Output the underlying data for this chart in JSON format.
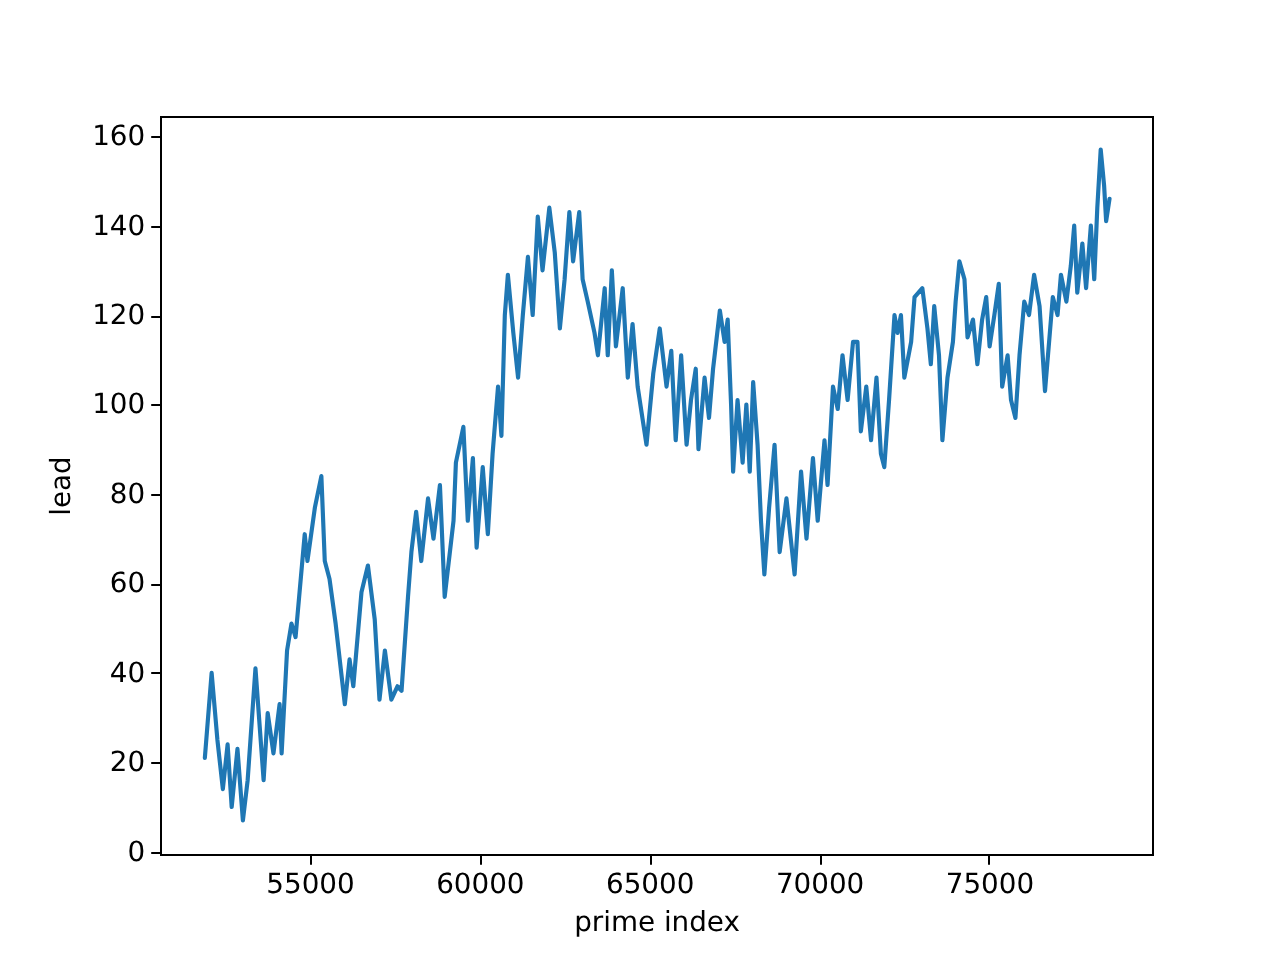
{
  "chart_data": {
    "type": "line",
    "xlabel": "prime index",
    "ylabel": "lead",
    "color": "#1f77b4",
    "line_style": "solid",
    "xlim": [
      50600,
      79800
    ],
    "ylim": [
      -0.5,
      164.5
    ],
    "xticks": [
      55000,
      60000,
      65000,
      70000,
      75000
    ],
    "yticks": [
      0,
      20,
      40,
      60,
      80,
      100,
      120,
      140,
      160
    ],
    "grid": false,
    "legend": false,
    "x": [
      51920,
      52120,
      52290,
      52450,
      52590,
      52710,
      52880,
      53040,
      53180,
      53410,
      53650,
      53770,
      53940,
      54120,
      54180,
      54340,
      54470,
      54590,
      54860,
      54940,
      55160,
      55350,
      55450,
      55590,
      55770,
      56040,
      56180,
      56290,
      56530,
      56720,
      56920,
      57060,
      57220,
      57410,
      57590,
      57710,
      57900,
      58000,
      58140,
      58290,
      58490,
      58650,
      58840,
      58980,
      59240,
      59310,
      59530,
      59660,
      59810,
      59920,
      60100,
      60250,
      60390,
      60550,
      60650,
      60750,
      60840,
      61000,
      61140,
      61280,
      61430,
      61570,
      61720,
      61860,
      62060,
      62220,
      62370,
      62510,
      62650,
      62760,
      62940,
      63040,
      63190,
      63390,
      63490,
      63690,
      63780,
      63900,
      64020,
      64220,
      64370,
      64510,
      64660,
      64920,
      65120,
      65310,
      65510,
      65650,
      65780,
      65940,
      66100,
      66230,
      66370,
      66450,
      66630,
      66760,
      66880,
      67080,
      67220,
      67310,
      67410,
      67470,
      67600,
      67750,
      67860,
      67960,
      68060,
      68190,
      68290,
      68390,
      68530,
      68690,
      68840,
      69040,
      69280,
      69470,
      69630,
      69820,
      69960,
      70160,
      70250,
      70410,
      70550,
      70690,
      70840,
      71000,
      71130,
      71230,
      71390,
      71530,
      71690,
      71820,
      71920,
      72060,
      72220,
      72310,
      72410,
      72510,
      72710,
      72810,
      73040,
      73190,
      73290,
      73390,
      73530,
      73630,
      73780,
      73940,
      74020,
      74130,
      74280,
      74370,
      74530,
      74660,
      74800,
      74920,
      75020,
      75160,
      75290,
      75390,
      75550,
      75650,
      75780,
      75900,
      76040,
      76180,
      76330,
      76490,
      76650,
      76760,
      76880,
      77020,
      77120,
      77280,
      77410,
      77510,
      77600,
      77750,
      77860,
      78000,
      78100,
      78190,
      78290,
      78390,
      78450,
      78550
    ],
    "values": [
      21,
      40,
      25,
      14,
      24,
      10,
      23,
      7,
      16,
      41,
      16,
      31,
      22,
      33,
      22,
      45,
      51,
      48,
      71,
      65,
      77,
      84,
      65,
      61,
      51,
      33,
      43,
      37,
      58,
      64,
      52,
      34,
      45,
      34,
      37,
      36,
      57,
      67,
      76,
      65,
      79,
      70,
      82,
      57,
      74,
      87,
      95,
      74,
      88,
      68,
      86,
      71,
      89,
      104,
      93,
      120,
      129,
      116,
      106,
      120,
      133,
      120,
      142,
      130,
      144,
      134,
      117,
      128,
      143,
      132,
      143,
      128,
      123,
      116,
      111,
      126,
      111,
      130,
      113,
      126,
      106,
      118,
      104,
      91,
      107,
      117,
      104,
      112,
      92,
      111,
      91,
      101,
      108,
      90,
      106,
      97,
      108,
      121,
      114,
      119,
      100,
      85,
      101,
      87,
      100,
      85,
      105,
      91,
      74,
      62,
      77,
      91,
      67,
      79,
      62,
      85,
      70,
      88,
      74,
      92,
      82,
      104,
      99,
      111,
      101,
      114,
      114,
      94,
      104,
      92,
      106,
      89,
      86,
      101,
      120,
      116,
      120,
      106,
      114,
      124,
      126,
      117,
      109,
      122,
      111,
      92,
      106,
      114,
      123,
      132,
      128,
      115,
      119,
      109,
      119,
      124,
      113,
      120,
      127,
      104,
      111,
      101,
      97,
      111,
      123,
      120,
      129,
      122,
      103,
      113,
      124,
      120,
      129,
      123,
      131,
      140,
      125,
      136,
      126,
      140,
      128,
      144,
      157,
      149,
      141,
      146
    ]
  }
}
